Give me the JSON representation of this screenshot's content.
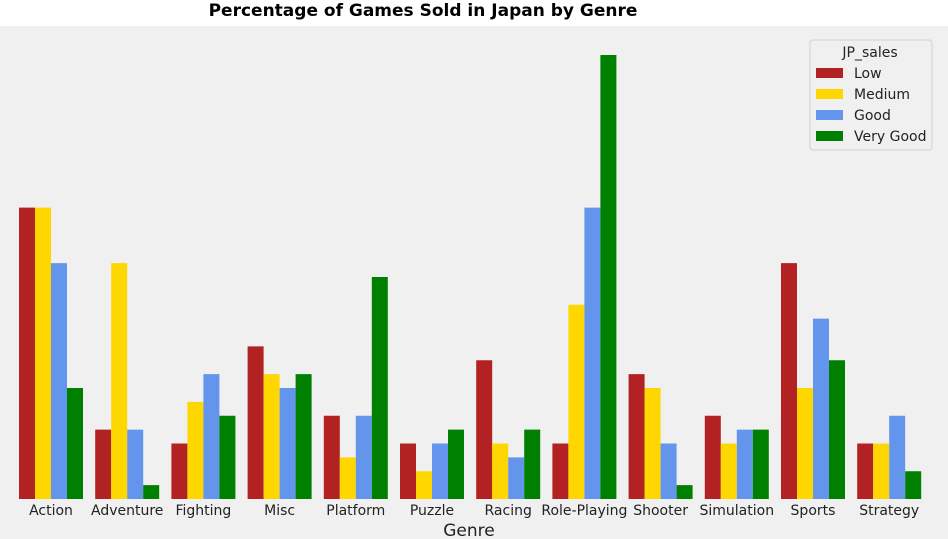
{
  "chart_data": {
    "type": "bar",
    "title": "Percentage of Games Sold in Japan by Genre",
    "xlabel": "Genre",
    "ylabel": "",
    "ylim": [
      0,
      33
    ],
    "grid": false,
    "legend": {
      "title": "JP_sales",
      "placement": "top-right"
    },
    "categories": [
      "Action",
      "Adventure",
      "Fighting",
      "Misc",
      "Platform",
      "Puzzle",
      "Racing",
      "Role-Playing",
      "Shooter",
      "Simulation",
      "Sports",
      "Strategy"
    ],
    "series": [
      {
        "name": "Low",
        "color": "#b22222",
        "values": [
          21.0,
          5.0,
          4.0,
          11.0,
          6.0,
          4.0,
          10.0,
          4.0,
          9.0,
          6.0,
          17.0,
          4.0
        ]
      },
      {
        "name": "Medium",
        "color": "#ffd700",
        "values": [
          21.0,
          17.0,
          7.0,
          9.0,
          3.0,
          2.0,
          4.0,
          14.0,
          8.0,
          4.0,
          8.0,
          4.0
        ]
      },
      {
        "name": "Good",
        "color": "#6495ed",
        "values": [
          17.0,
          5.0,
          9.0,
          8.0,
          6.0,
          4.0,
          3.0,
          21.0,
          4.0,
          5.0,
          13.0,
          6.0
        ]
      },
      {
        "name": "Very Good",
        "color": "#008000",
        "values": [
          8.0,
          1.0,
          6.0,
          9.0,
          16.0,
          5.0,
          5.0,
          32.0,
          1.0,
          5.0,
          10.0,
          2.0
        ]
      }
    ],
    "colors": {
      "plot_background": "#f0f0f0",
      "page_background": "#ffffff"
    }
  }
}
